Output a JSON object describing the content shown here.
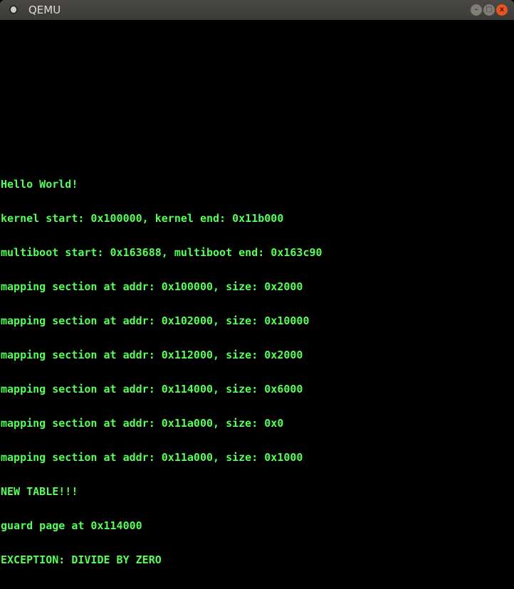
{
  "window": {
    "title": "QEMU",
    "icon": "qemu-app-icon"
  },
  "controls": {
    "minimize_icon": "–",
    "maximize_icon": "□",
    "close_icon": "x"
  },
  "console": {
    "color": "#55ff55",
    "lines": [
      "Hello World!",
      "kernel start: 0x100000, kernel end: 0x11b000",
      "multiboot start: 0x163688, multiboot end: 0x163c90",
      "mapping section at addr: 0x100000, size: 0x2000",
      "mapping section at addr: 0x102000, size: 0x10000",
      "mapping section at addr: 0x112000, size: 0x2000",
      "mapping section at addr: 0x114000, size: 0x6000",
      "mapping section at addr: 0x11a000, size: 0x0",
      "mapping section at addr: 0x11a000, size: 0x1000",
      "NEW TABLE!!!",
      "guard page at 0x114000",
      "EXCEPTION: DIVIDE BY ZERO"
    ]
  }
}
